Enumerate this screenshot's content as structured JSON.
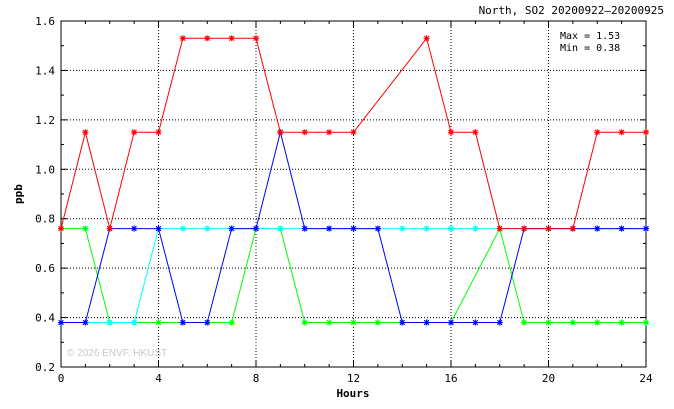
{
  "chart_data": {
    "type": "line",
    "title": "North, SO2 20200922–20200925",
    "xlabel": "Hours",
    "ylabel": "ppb",
    "xlim": [
      0,
      24
    ],
    "ylim": [
      0.2,
      1.6
    ],
    "xticks": [
      0,
      4,
      8,
      12,
      16,
      20,
      24
    ],
    "xtick_labels": [
      "0",
      "4",
      "8",
      "12",
      "16",
      "20",
      "24"
    ],
    "yticks": [
      0.2,
      0.4,
      0.6,
      0.8,
      1.0,
      1.2,
      1.4,
      1.6
    ],
    "ytick_labels": [
      "0.2",
      "0.4",
      "0.6",
      "0.8",
      "1.0",
      "1.2",
      "1.4",
      "1.6"
    ],
    "grid": true,
    "annotations": [
      "Max = 1.53",
      "Min = 0.38"
    ],
    "watermark": "© 2026 ENVF, HKUST",
    "x": [
      0,
      1,
      2,
      3,
      4,
      5,
      6,
      7,
      8,
      9,
      10,
      11,
      12,
      13,
      14,
      15,
      16,
      17,
      18,
      19,
      20,
      21,
      22,
      23,
      24
    ],
    "series": [
      {
        "color": "#00ff00",
        "values": [
          0.76,
          0.76,
          0.38,
          0.38,
          0.38,
          0.38,
          0.38,
          0.38,
          0.76,
          0.76,
          0.38,
          0.38,
          0.38,
          0.38,
          0.38,
          0.38,
          0.38,
          null,
          0.76,
          0.38,
          0.38,
          0.38,
          0.38,
          0.38,
          0.38
        ]
      },
      {
        "color": "#00ffff",
        "values": [
          0.38,
          0.38,
          0.38,
          0.38,
          0.76,
          0.76,
          0.76,
          0.76,
          0.76,
          0.76,
          0.76,
          0.76,
          0.76,
          0.76,
          0.76,
          0.76,
          0.76,
          0.76,
          0.76,
          0.76,
          0.76,
          0.76,
          0.76,
          0.76,
          0.76
        ]
      },
      {
        "color": "#0000ff",
        "values": [
          0.38,
          0.38,
          0.76,
          0.76,
          0.76,
          0.38,
          0.38,
          0.76,
          0.76,
          1.15,
          0.76,
          0.76,
          0.76,
          0.76,
          0.38,
          0.38,
          0.38,
          0.38,
          0.38,
          0.76,
          0.76,
          0.76,
          0.76,
          0.76,
          0.76
        ]
      },
      {
        "color": "#ff0000",
        "values": [
          0.76,
          1.15,
          0.76,
          1.15,
          1.15,
          1.53,
          1.53,
          1.53,
          1.53,
          1.15,
          1.15,
          1.15,
          1.15,
          null,
          null,
          1.53,
          1.15,
          1.15,
          0.76,
          0.76,
          0.76,
          0.76,
          1.15,
          1.15,
          1.15
        ]
      }
    ]
  }
}
